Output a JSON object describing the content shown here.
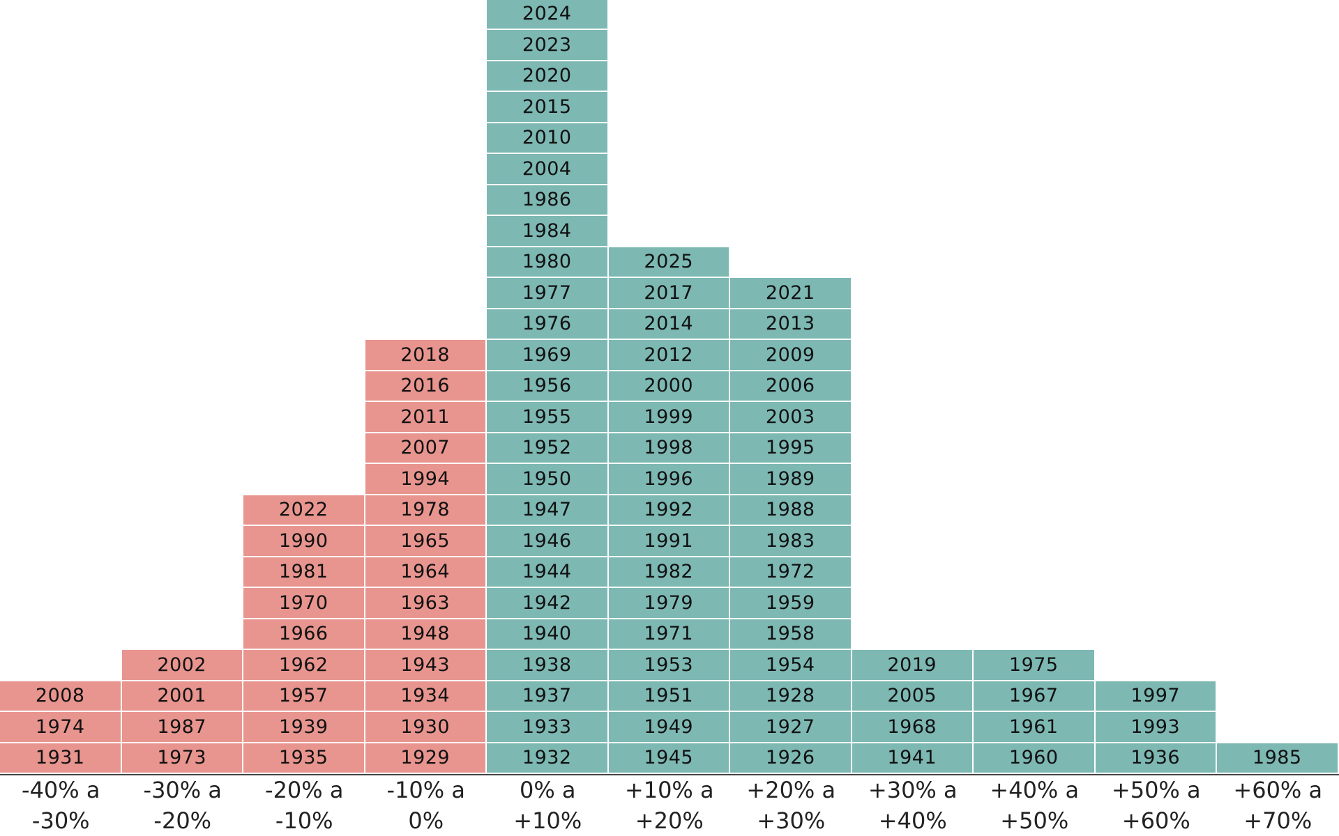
{
  "chart_data": {
    "type": "bar",
    "title": "",
    "xlabel": "",
    "ylabel": "",
    "colors": {
      "negative": "#E8958F",
      "positive": "#7DB8B3"
    },
    "bins": [
      {
        "label_line1": "-40% a",
        "label_line2": "-30%",
        "sign": "negative",
        "years": [
          "1931",
          "1974",
          "2008"
        ]
      },
      {
        "label_line1": "-30% a",
        "label_line2": "-20%",
        "sign": "negative",
        "years": [
          "1973",
          "1987",
          "2001",
          "2002"
        ]
      },
      {
        "label_line1": "-20% a",
        "label_line2": "-10%",
        "sign": "negative",
        "years": [
          "1935",
          "1939",
          "1957",
          "1962",
          "1966",
          "1970",
          "1981",
          "1990",
          "2022"
        ]
      },
      {
        "label_line1": "-10% a",
        "label_line2": "0%",
        "sign": "negative",
        "years": [
          "1929",
          "1930",
          "1934",
          "1943",
          "1948",
          "1963",
          "1964",
          "1965",
          "1978",
          "1994",
          "2007",
          "2011",
          "2016",
          "2018"
        ]
      },
      {
        "label_line1": "0% a",
        "label_line2": "+10%",
        "sign": "positive",
        "years": [
          "1932",
          "1933",
          "1937",
          "1938",
          "1940",
          "1942",
          "1944",
          "1946",
          "1947",
          "1950",
          "1952",
          "1955",
          "1956",
          "1969",
          "1976",
          "1977",
          "1980",
          "1984",
          "1986",
          "2004",
          "2010",
          "2015",
          "2020",
          "2023",
          "2024"
        ]
      },
      {
        "label_line1": "+10% a",
        "label_line2": "+20%",
        "sign": "positive",
        "years": [
          "1945",
          "1949",
          "1951",
          "1953",
          "1971",
          "1979",
          "1982",
          "1991",
          "1992",
          "1996",
          "1998",
          "1999",
          "2000",
          "2012",
          "2014",
          "2017",
          "2025"
        ]
      },
      {
        "label_line1": "+20% a",
        "label_line2": "+30%",
        "sign": "positive",
        "years": [
          "1926",
          "1927",
          "1928",
          "1954",
          "1958",
          "1959",
          "1972",
          "1983",
          "1988",
          "1989",
          "1995",
          "2003",
          "2006",
          "2009",
          "2013",
          "2021"
        ]
      },
      {
        "label_line1": "+30% a",
        "label_line2": "+40%",
        "sign": "positive",
        "years": [
          "1941",
          "1968",
          "2005",
          "2019"
        ]
      },
      {
        "label_line1": "+40% a",
        "label_line2": "+50%",
        "sign": "positive",
        "years": [
          "1960",
          "1961",
          "1967",
          "1975"
        ]
      },
      {
        "label_line1": "+50% a",
        "label_line2": "+60%",
        "sign": "positive",
        "years": [
          "1936",
          "1993",
          "1997"
        ]
      },
      {
        "label_line1": "+60% a",
        "label_line2": "+70%",
        "sign": "positive",
        "years": [
          "1985"
        ]
      }
    ]
  }
}
